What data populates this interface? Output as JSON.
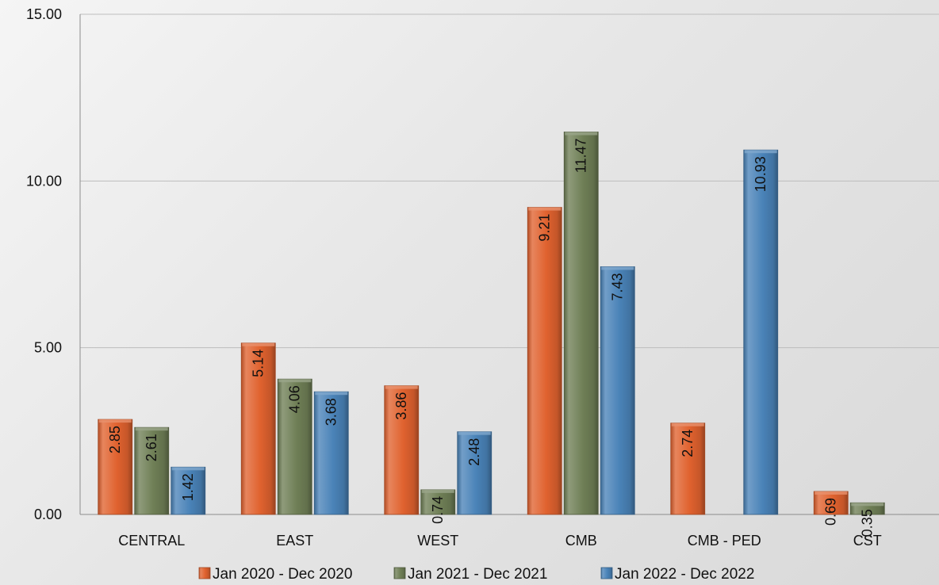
{
  "chart_data": {
    "type": "bar",
    "title": "",
    "xlabel": "",
    "ylabel": "",
    "ylim": [
      0,
      15
    ],
    "y_ticks": [
      "0.00",
      "5.00",
      "10.00",
      "15.00"
    ],
    "grid": true,
    "legend_position": "bottom",
    "categories": [
      "CENTRAL",
      "EAST",
      "WEST",
      "CMB",
      "CMB - PED",
      "CST"
    ],
    "series": [
      {
        "name": "Jan 2020 - Dec 2020",
        "color": "#e0622f",
        "values": [
          2.85,
          5.14,
          3.86,
          9.21,
          2.74,
          0.69
        ],
        "labels": [
          "2.85",
          "5.14",
          "3.86",
          "9.21",
          "2.74",
          "0.69"
        ]
      },
      {
        "name": "Jan 2021 - Dec 2021",
        "color": "#6f7f56",
        "values": [
          2.61,
          4.06,
          0.74,
          11.47,
          null,
          0.35
        ],
        "labels": [
          "2.61",
          "4.06",
          "0.74",
          "11.47",
          "",
          "0.35"
        ]
      },
      {
        "name": "Jan 2022 - Dec 2022",
        "color": "#4a83b8",
        "values": [
          1.42,
          3.68,
          2.48,
          7.43,
          10.93,
          null
        ],
        "labels": [
          "1.42",
          "3.68",
          "2.48",
          "7.43",
          "10.93",
          ""
        ]
      }
    ]
  }
}
